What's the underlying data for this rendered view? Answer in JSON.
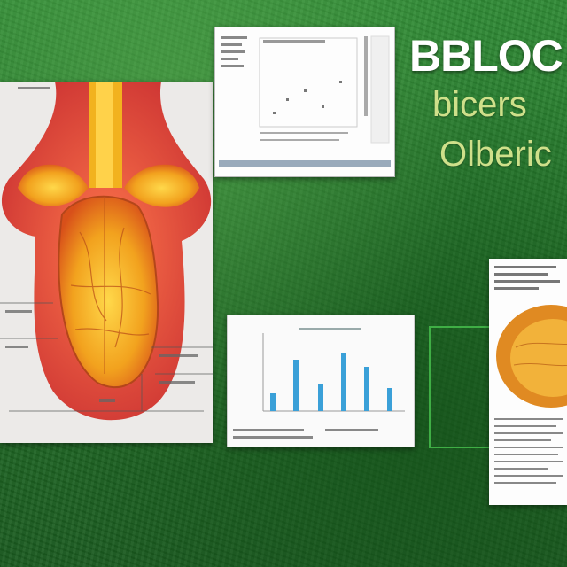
{
  "headline": {
    "title": "BBLOC",
    "line1": "bicers",
    "line2": "Olberic"
  },
  "colors": {
    "background": "#1f6a26",
    "title": "#ffffff",
    "subtitle": "#cfe08a",
    "organ": "#f0a020",
    "chart_bars": "#3aa0d8"
  },
  "icons": [
    "anatomy-illustration",
    "document-thumbnail",
    "bar-chart-thumbnail",
    "specimen-document"
  ]
}
